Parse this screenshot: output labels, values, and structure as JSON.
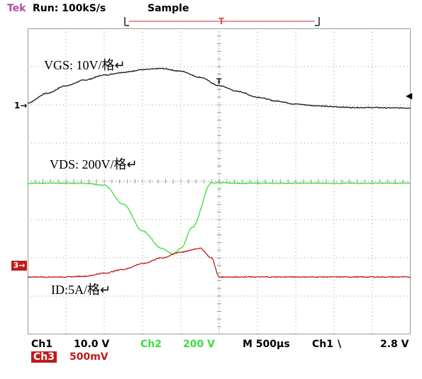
{
  "header": {
    "brand": "Tek",
    "run_status": "Run: 100kS/s",
    "acq_mode": "Sample",
    "trigger_marker": "T"
  },
  "labels": {
    "vgs": "VGS: 10V/格↵",
    "vds": "VDS: 200V/格↵",
    "id": "ID:5A/格↵"
  },
  "markers": {
    "ch1": "1→",
    "ch3": "3→",
    "trigger_level": "◀"
  },
  "footer": {
    "ch1_name": "Ch1",
    "ch1_scale": "10.0 V",
    "ch2_name": "Ch2",
    "ch2_scale": "200 V",
    "timebase": "M 500µs",
    "trigger_src": "Ch1",
    "trigger_slope": "\\",
    "trigger_level": "2.8 V",
    "ch3_name": "Ch3",
    "ch3_scale": "500mV"
  },
  "colors": {
    "ch1": "#1a1a1a",
    "ch2": "#3ddc3d",
    "ch3": "#c21b1b",
    "grid": "#9a9a9a",
    "brand": "#b04aa0"
  },
  "chart_data": {
    "type": "line",
    "grid": {
      "x_divisions": 10,
      "y_divisions": 8
    },
    "series": [
      {
        "name": "VGS",
        "x": [
          0,
          0.5,
          1,
          1.5,
          2,
          2.5,
          3,
          3.5,
          4,
          4.5,
          5,
          5.5,
          6,
          6.5,
          7,
          7.5,
          8,
          8.5,
          9,
          9.5,
          10
        ],
        "y": [
          2.05,
          2.3,
          2.5,
          2.65,
          2.78,
          2.85,
          2.92,
          2.95,
          2.88,
          2.72,
          2.5,
          2.35,
          2.2,
          2.1,
          2.02,
          1.98,
          1.95,
          1.93,
          1.93,
          1.92,
          1.92
        ]
      },
      {
        "name": "VDS",
        "x": [
          0,
          0.5,
          1,
          1.5,
          2,
          2.5,
          3,
          3.5,
          3.8,
          4,
          4.3,
          4.8,
          5,
          5.5,
          6,
          6.5,
          7,
          7.5,
          8,
          8.5,
          9,
          9.5,
          10
        ],
        "y": [
          -0.05,
          -0.05,
          -0.05,
          -0.05,
          -0.1,
          -0.6,
          -1.3,
          -1.75,
          -1.9,
          -1.75,
          -1.2,
          -0.04,
          -0.04,
          -0.05,
          -0.05,
          -0.05,
          -0.05,
          -0.05,
          -0.05,
          -0.05,
          -0.05,
          -0.05,
          -0.05
        ]
      },
      {
        "name": "ID",
        "x": [
          0,
          0.5,
          1,
          1.5,
          2,
          2.5,
          3,
          3.5,
          4,
          4.5,
          4.8,
          5,
          5.5,
          6,
          6.5,
          7,
          7.5,
          8,
          8.5,
          9,
          9.5,
          10
        ],
        "y": [
          -2.5,
          -2.5,
          -2.5,
          -2.48,
          -2.4,
          -2.3,
          -2.15,
          -2.0,
          -1.85,
          -1.75,
          -2.0,
          -2.5,
          -2.5,
          -2.5,
          -2.5,
          -2.5,
          -2.5,
          -2.5,
          -2.5,
          -2.5,
          -2.5,
          -2.5
        ]
      }
    ]
  }
}
